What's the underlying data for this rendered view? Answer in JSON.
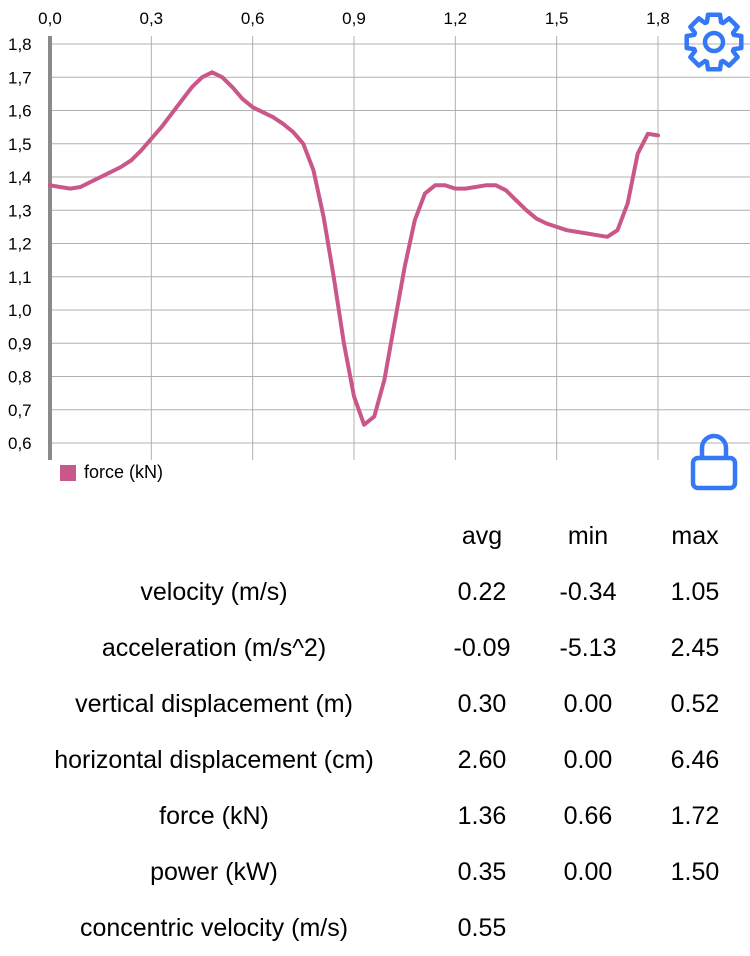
{
  "chart_data": {
    "type": "line",
    "xlim": [
      0.0,
      1.9
    ],
    "ylim": [
      0.6,
      1.8
    ],
    "x_ticks": [
      "0,0",
      "0,3",
      "0,6",
      "0,9",
      "1,2",
      "1,5",
      "1,8"
    ],
    "y_ticks": [
      "0,6",
      "0,7",
      "0,8",
      "0,9",
      "1,0",
      "1,1",
      "1,2",
      "1,3",
      "1,4",
      "1,5",
      "1,6",
      "1,7",
      "1,8"
    ],
    "grid": true,
    "legend_position": "bottom-left",
    "series": [
      {
        "name": "force (kN)",
        "color": "#c9578a",
        "points": [
          [
            0.0,
            1.375
          ],
          [
            0.03,
            1.37
          ],
          [
            0.06,
            1.365
          ],
          [
            0.09,
            1.37
          ],
          [
            0.12,
            1.385
          ],
          [
            0.15,
            1.4
          ],
          [
            0.18,
            1.415
          ],
          [
            0.21,
            1.43
          ],
          [
            0.24,
            1.45
          ],
          [
            0.27,
            1.48
          ],
          [
            0.3,
            1.515
          ],
          [
            0.33,
            1.55
          ],
          [
            0.36,
            1.59
          ],
          [
            0.39,
            1.63
          ],
          [
            0.42,
            1.67
          ],
          [
            0.45,
            1.7
          ],
          [
            0.48,
            1.715
          ],
          [
            0.51,
            1.7
          ],
          [
            0.54,
            1.67
          ],
          [
            0.57,
            1.635
          ],
          [
            0.6,
            1.61
          ],
          [
            0.63,
            1.595
          ],
          [
            0.66,
            1.58
          ],
          [
            0.69,
            1.56
          ],
          [
            0.72,
            1.535
          ],
          [
            0.75,
            1.5
          ],
          [
            0.78,
            1.42
          ],
          [
            0.81,
            1.28
          ],
          [
            0.84,
            1.1
          ],
          [
            0.87,
            0.9
          ],
          [
            0.9,
            0.74
          ],
          [
            0.93,
            0.655
          ],
          [
            0.96,
            0.68
          ],
          [
            0.99,
            0.79
          ],
          [
            1.02,
            0.96
          ],
          [
            1.05,
            1.13
          ],
          [
            1.08,
            1.27
          ],
          [
            1.11,
            1.35
          ],
          [
            1.14,
            1.375
          ],
          [
            1.17,
            1.375
          ],
          [
            1.2,
            1.365
          ],
          [
            1.23,
            1.365
          ],
          [
            1.26,
            1.37
          ],
          [
            1.29,
            1.375
          ],
          [
            1.32,
            1.375
          ],
          [
            1.35,
            1.36
          ],
          [
            1.38,
            1.33
          ],
          [
            1.41,
            1.3
          ],
          [
            1.44,
            1.275
          ],
          [
            1.47,
            1.26
          ],
          [
            1.5,
            1.25
          ],
          [
            1.53,
            1.24
          ],
          [
            1.56,
            1.235
          ],
          [
            1.59,
            1.23
          ],
          [
            1.62,
            1.225
          ],
          [
            1.65,
            1.22
          ],
          [
            1.68,
            1.24
          ],
          [
            1.71,
            1.32
          ],
          [
            1.74,
            1.47
          ],
          [
            1.77,
            1.53
          ],
          [
            1.8,
            1.525
          ]
        ]
      }
    ]
  },
  "table": {
    "headers": [
      "",
      "avg",
      "min",
      "max"
    ],
    "rows": [
      {
        "label": "velocity (m/s)",
        "avg": "0.22",
        "min": "-0.34",
        "max": "1.05"
      },
      {
        "label": "acceleration (m/s^2)",
        "avg": "-0.09",
        "min": "-5.13",
        "max": "2.45"
      },
      {
        "label": "vertical displacement (m)",
        "avg": "0.30",
        "min": "0.00",
        "max": "0.52"
      },
      {
        "label": "horizontal displacement (cm)",
        "avg": "2.60",
        "min": "0.00",
        "max": "6.46"
      },
      {
        "label": "force (kN)",
        "avg": "1.36",
        "min": "0.66",
        "max": "1.72"
      },
      {
        "label": "power (kW)",
        "avg": "0.35",
        "min": "0.00",
        "max": "1.50"
      },
      {
        "label": "concentric velocity (m/s)",
        "avg": "0.55",
        "min": "",
        "max": ""
      }
    ]
  },
  "icons": {
    "settings": "gear-icon",
    "lock": "lock-icon",
    "accent_color": "#3478f6"
  }
}
